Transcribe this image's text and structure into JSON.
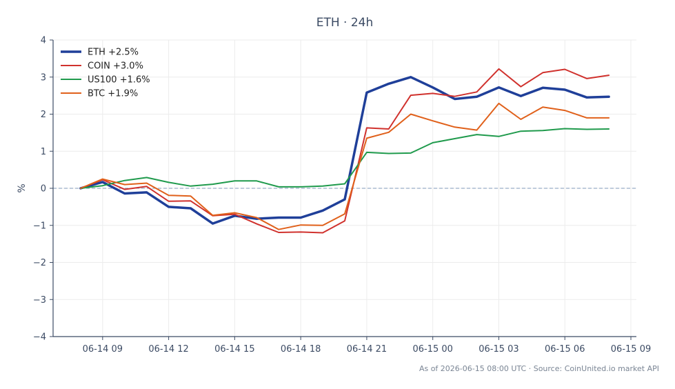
{
  "chart_data": {
    "type": "line",
    "title": "ETH · 24h",
    "ylabel": "%",
    "xlabel": "",
    "ylim": [
      -4,
      4
    ],
    "yticks": [
      4,
      3,
      2,
      1,
      0,
      -1,
      -2,
      -3,
      -4
    ],
    "xrange": [
      "06-14 06:45",
      "06-15 09:15"
    ],
    "xticks": [
      "06-14 09",
      "06-14 12",
      "06-14 15",
      "06-14 18",
      "06-14 21",
      "06-15 00",
      "06-15 03",
      "06-15 06",
      "06-15 09"
    ],
    "xtick_times": [
      "06-14 09:00",
      "06-14 12:00",
      "06-14 15:00",
      "06-14 18:00",
      "06-14 21:00",
      "06-15 00:00",
      "06-15 03:00",
      "06-15 06:00",
      "06-15 09:00"
    ],
    "x": [
      "06-14 08:00",
      "06-14 09:00",
      "06-14 10:00",
      "06-14 11:00",
      "06-14 12:00",
      "06-14 13:00",
      "06-14 14:00",
      "06-14 15:00",
      "06-14 16:00",
      "06-14 17:00",
      "06-14 18:00",
      "06-14 19:00",
      "06-14 20:00",
      "06-14 21:00",
      "06-14 22:00",
      "06-14 23:00",
      "06-15 00:00",
      "06-15 01:00",
      "06-15 02:00",
      "06-15 03:00",
      "06-15 04:00",
      "06-15 05:00",
      "06-15 06:00",
      "06-15 07:00",
      "06-15 08:00"
    ],
    "grid": true,
    "zero_line": true,
    "legend_position": "top-left",
    "series": [
      {
        "name": "ETH +2.5%",
        "color": "#1f3f99",
        "width": 3.5,
        "values": [
          0.0,
          0.17,
          -0.14,
          -0.11,
          -0.5,
          -0.54,
          -0.95,
          -0.74,
          -0.82,
          -0.79,
          -0.79,
          -0.6,
          -0.3,
          2.58,
          2.82,
          3.0,
          2.72,
          2.41,
          2.47,
          2.72,
          2.49,
          2.71,
          2.66,
          2.45,
          2.47
        ]
      },
      {
        "name": "COIN +3.0%",
        "color": "#d0312d",
        "width": 2,
        "values": [
          0.0,
          0.23,
          -0.03,
          0.05,
          -0.35,
          -0.34,
          -0.74,
          -0.7,
          -0.96,
          -1.19,
          -1.18,
          -1.2,
          -0.88,
          1.63,
          1.6,
          2.51,
          2.56,
          2.48,
          2.6,
          3.22,
          2.74,
          3.12,
          3.21,
          2.96,
          3.05
        ]
      },
      {
        "name": "US100 +1.6%",
        "color": "#1f9a4c",
        "width": 2,
        "values": [
          0.0,
          0.07,
          0.21,
          0.29,
          0.16,
          0.06,
          0.11,
          0.2,
          0.2,
          0.04,
          0.04,
          0.06,
          0.12,
          0.97,
          0.94,
          0.95,
          1.23,
          1.34,
          1.45,
          1.4,
          1.54,
          1.56,
          1.61,
          1.59,
          1.6
        ]
      },
      {
        "name": "BTC +1.9%",
        "color": "#e0601a",
        "width": 2,
        "values": [
          0.0,
          0.25,
          0.1,
          0.14,
          -0.19,
          -0.21,
          -0.73,
          -0.66,
          -0.79,
          -1.11,
          -0.99,
          -1.0,
          -0.69,
          1.35,
          1.51,
          2.0,
          1.82,
          1.65,
          1.57,
          2.29,
          1.86,
          2.19,
          2.1,
          1.9,
          1.9
        ]
      }
    ]
  },
  "footer": {
    "note": "As of 2026-06-15 08:00 UTC · Source: CoinUnited.io market API"
  }
}
